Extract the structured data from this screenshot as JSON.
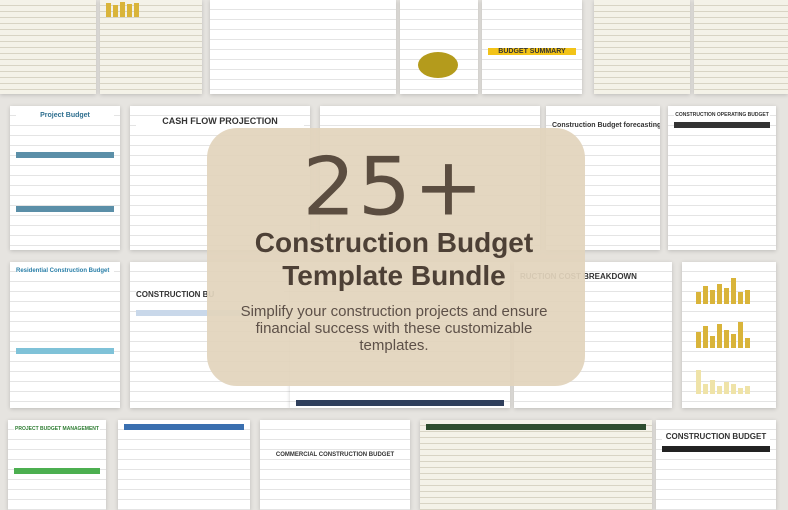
{
  "hero": {
    "count": "25+",
    "title": "Construction Budget Template Bundle",
    "subtitle": "Simplify your construction projects and ensure financial success with these customizable templates."
  },
  "thumbnails": [
    {
      "title": "BUDGET SUMMARY"
    },
    {
      "title": "Project Budget"
    },
    {
      "title": "CASH FLOW PROJECTION"
    },
    {
      "title": "Construction Budget forecasting"
    },
    {
      "title": "CONSTRUCTION OPERATING BUDGET"
    },
    {
      "title": "Residential Construction Budget"
    },
    {
      "title": "CONSTRUCTION BU"
    },
    {
      "title": "RUCTION COST BREAKDOWN"
    },
    {
      "title": "PROJECT BUDGET MANAGEMENT"
    },
    {
      "title": "COMMERCIAL CONSTRUCTION BUDGET"
    },
    {
      "title": "CONSTRUCTION BUDGET"
    }
  ]
}
